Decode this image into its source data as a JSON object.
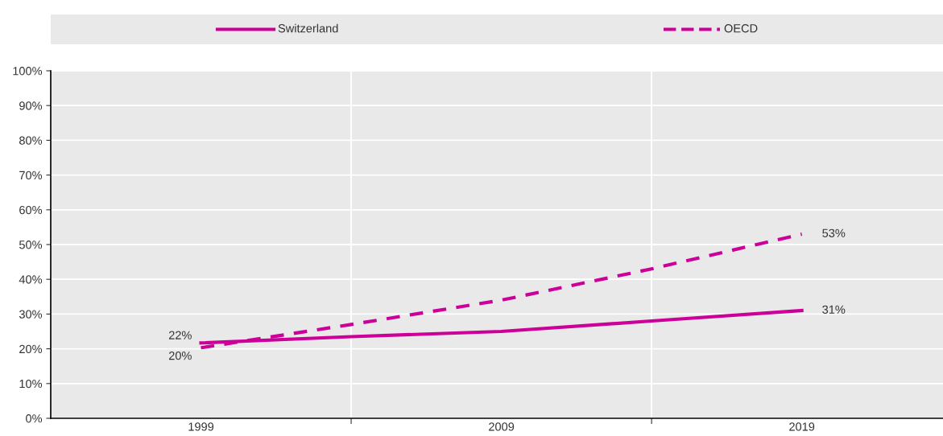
{
  "chart_data": {
    "type": "line",
    "x": [
      1999,
      2004,
      2009,
      2014,
      2019
    ],
    "series": [
      {
        "name": "Switzerland",
        "color": "#cc0099",
        "line_style": "solid",
        "values": [
          21.7,
          23.5,
          25,
          28,
          31
        ],
        "value_labels": [
          "22%",
          null,
          null,
          null,
          "31%"
        ]
      },
      {
        "name": "OECD",
        "color": "#cc0099",
        "line_style": "dashed",
        "values": [
          20.3,
          27,
          34,
          43,
          53
        ],
        "value_labels": [
          "20%",
          null,
          null,
          null,
          "53%"
        ]
      }
    ],
    "xlim": [
      1994,
      2023.7
    ],
    "xticks": [
      1999,
      {
        "value": 2004,
        "label": null
      },
      2009,
      {
        "value": 2014,
        "label": null
      },
      2019
    ],
    "ylim": [
      0,
      100
    ],
    "yticks": [
      {
        "value": 0,
        "label": "0%"
      },
      {
        "value": 10,
        "label": "10%"
      },
      {
        "value": 20,
        "label": "20%"
      },
      {
        "value": 30,
        "label": "30%"
      },
      {
        "value": 40,
        "label": "40%"
      },
      {
        "value": 50,
        "label": "50%"
      },
      {
        "value": 60,
        "label": "60%"
      },
      {
        "value": 70,
        "label": "70%"
      },
      {
        "value": 80,
        "label": "80%"
      },
      {
        "value": 90,
        "label": "90%"
      },
      {
        "value": 100,
        "label": "100%"
      }
    ],
    "grid": "y",
    "ref_lines": [
      {
        "axis": "x",
        "value": 2004,
        "color": "#ffffff"
      },
      {
        "axis": "x",
        "value": 2014,
        "color": "#ffffff"
      }
    ],
    "legend": "top"
  }
}
